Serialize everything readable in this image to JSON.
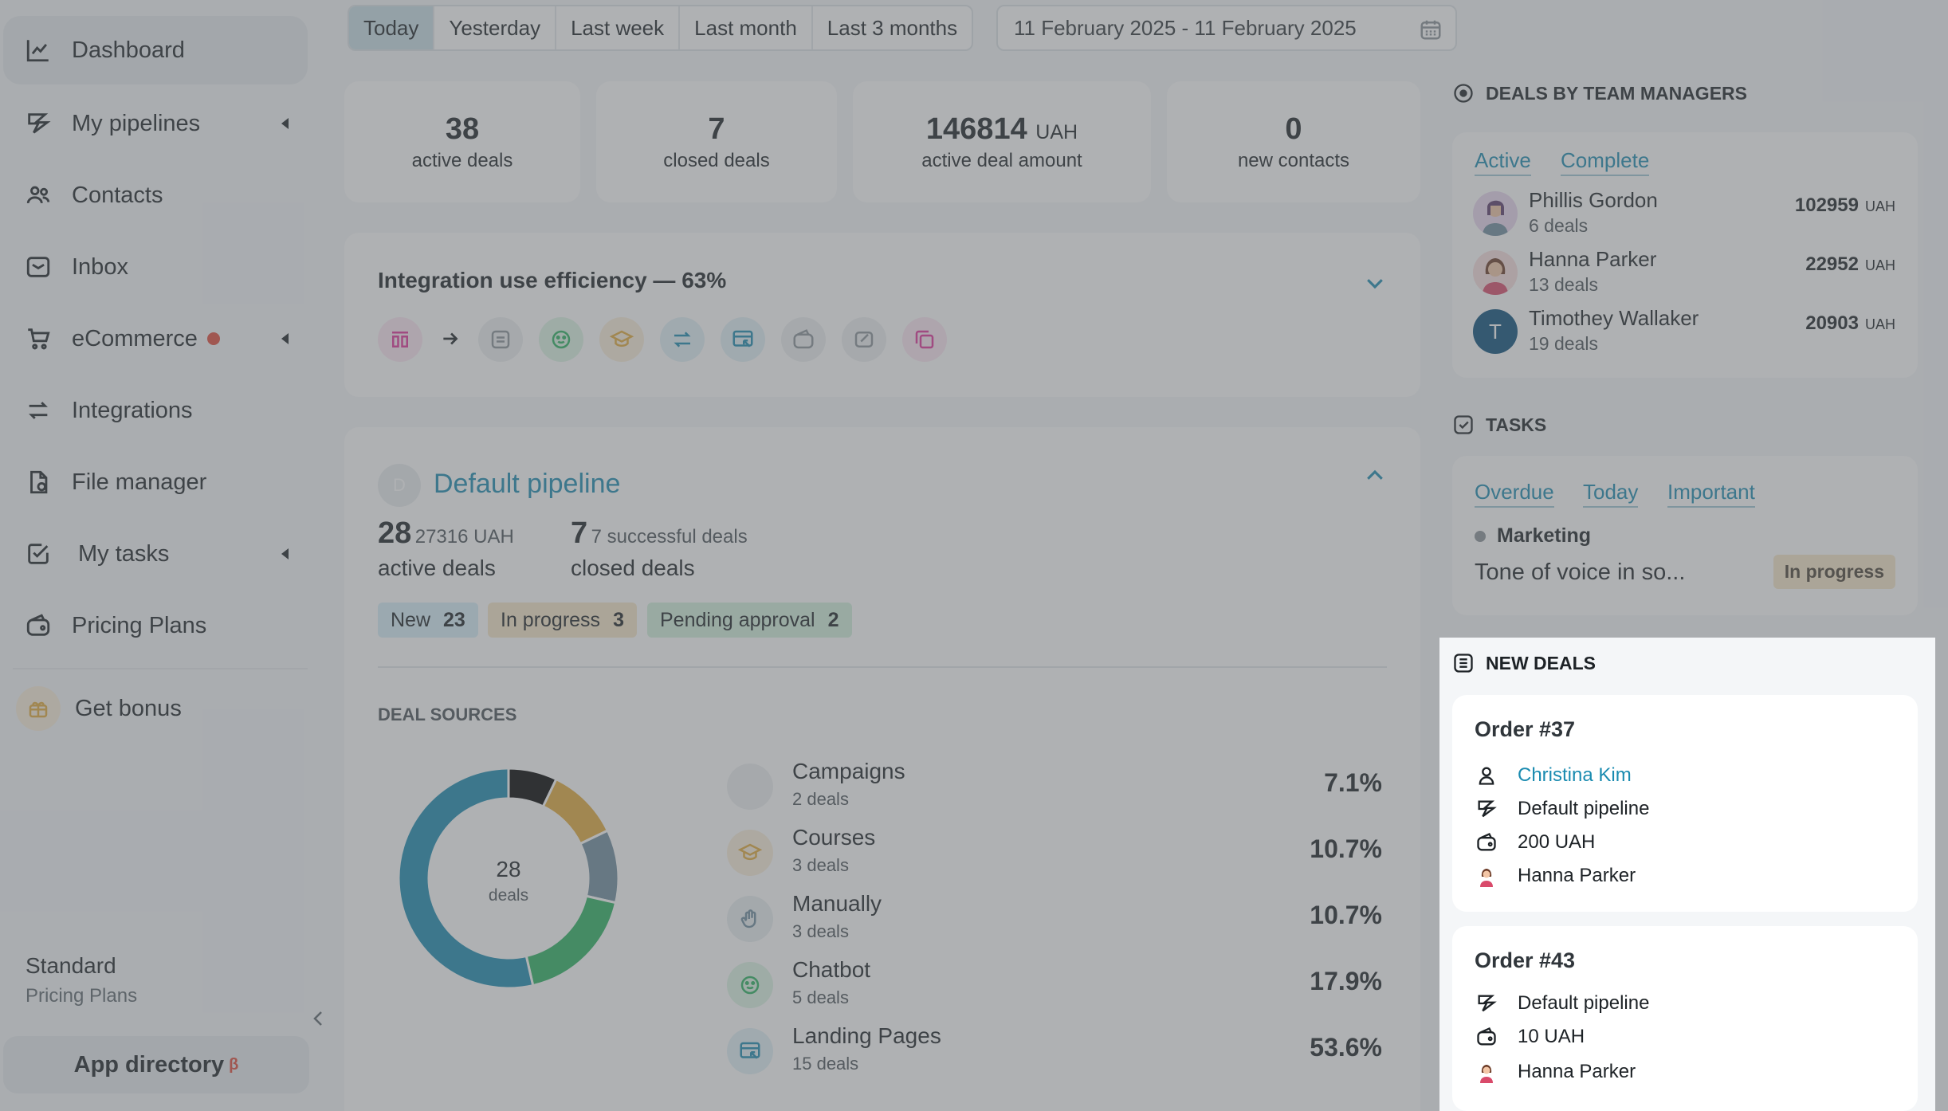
{
  "sidebar": {
    "items": [
      {
        "label": "Dashboard",
        "icon": "chart-line-icon"
      },
      {
        "label": "My pipelines",
        "icon": "pipeline-icon"
      },
      {
        "label": "Contacts",
        "icon": "contacts-icon"
      },
      {
        "label": "Inbox",
        "icon": "inbox-icon"
      },
      {
        "label": "eCommerce",
        "icon": "cart-icon"
      },
      {
        "label": "Integrations",
        "icon": "arrows-icon"
      },
      {
        "label": "File manager",
        "icon": "file-icon"
      },
      {
        "label": "My tasks",
        "icon": "task-check-icon"
      },
      {
        "label": "Pricing Plans",
        "icon": "wallet-icon"
      }
    ],
    "bonus": "Get bonus",
    "plan_name": "Standard",
    "plan_sub": "Pricing Plans",
    "app_directory": "App directory",
    "app_directory_badge": "β"
  },
  "periods": [
    "Today",
    "Yesterday",
    "Last week",
    "Last month",
    "Last 3 months"
  ],
  "date_range": "11 February 2025 - 11 February 2025",
  "stats": [
    {
      "value": "38",
      "label": "active deals"
    },
    {
      "value": "7",
      "label": "closed deals"
    },
    {
      "value": "146814",
      "unit": "UAH",
      "label": "active deal amount"
    },
    {
      "value": "0",
      "label": "new contacts"
    }
  ],
  "efficiency": {
    "title": "Integration use efficiency — 63%"
  },
  "pipeline": {
    "badge": "D",
    "title": "Default pipeline",
    "active_count": "28",
    "active_amount": "27316 UAH",
    "active_label": "active deals",
    "closed_count": "7",
    "closed_sub": "7 successful deals",
    "closed_label": "closed deals",
    "stages": [
      {
        "label": "New",
        "count": "23",
        "color": "#d6eef8"
      },
      {
        "label": "In progress",
        "count": "3",
        "color": "#f7e6c8"
      },
      {
        "label": "Pending approval",
        "count": "2",
        "color": "#d3f0dc"
      }
    ]
  },
  "deal_sources": {
    "heading": "DEAL SOURCES",
    "center_value": "28",
    "center_label": "deals",
    "sources": [
      {
        "name": "Campaigns",
        "count": "2 deals",
        "pct": "7.1%",
        "color": "#000000",
        "icon": "campaign-icon"
      },
      {
        "name": "Courses",
        "count": "3 deals",
        "pct": "10.7%",
        "color": "#e3aa3b",
        "icon": "graduation-cap-icon"
      },
      {
        "name": "Manually",
        "count": "3 deals",
        "pct": "10.7%",
        "color": "#6f8d9e",
        "icon": "hand-icon"
      },
      {
        "name": "Chatbot",
        "count": "5 deals",
        "pct": "17.9%",
        "color": "#2bb360",
        "icon": "chatbot-icon"
      },
      {
        "name": "Landing Pages",
        "count": "15 deals",
        "pct": "53.6%",
        "color": "#1a8bb0",
        "icon": "landing-page-icon"
      }
    ]
  },
  "chart_data": {
    "type": "pie",
    "categories": [
      "Campaigns",
      "Courses",
      "Manually",
      "Chatbot",
      "Landing Pages"
    ],
    "values": [
      2,
      3,
      3,
      5,
      15
    ],
    "title": "",
    "center_label": "28 deals"
  },
  "managers": {
    "heading": "DEALS BY TEAM MANAGERS",
    "tabs": [
      "Active",
      "Complete"
    ],
    "list": [
      {
        "name": "Phillis Gordon",
        "deals": "6 deals",
        "amount": "102959",
        "unit": "UAH"
      },
      {
        "name": "Hanna Parker",
        "deals": "13 deals",
        "amount": "22952",
        "unit": "UAH"
      },
      {
        "name": "Timothey Wallaker",
        "deals": "19 deals",
        "amount": "20903",
        "unit": "UAH",
        "initial": "T"
      }
    ]
  },
  "tasks": {
    "heading": "TASKS",
    "tabs": [
      "Overdue",
      "Today",
      "Important"
    ],
    "category": "Marketing",
    "title": "Tone of voice in so...",
    "status": "In progress"
  },
  "new_deals": {
    "heading": "NEW DEALS",
    "orders": [
      {
        "title": "Order #37",
        "contact": "Christina Kim",
        "pipeline": "Default pipeline",
        "amount": "200 UAH",
        "manager": "Hanna Parker"
      },
      {
        "title": "Order #43",
        "pipeline": "Default pipeline",
        "amount": "10 UAH",
        "manager": "Hanna Parker"
      }
    ]
  }
}
